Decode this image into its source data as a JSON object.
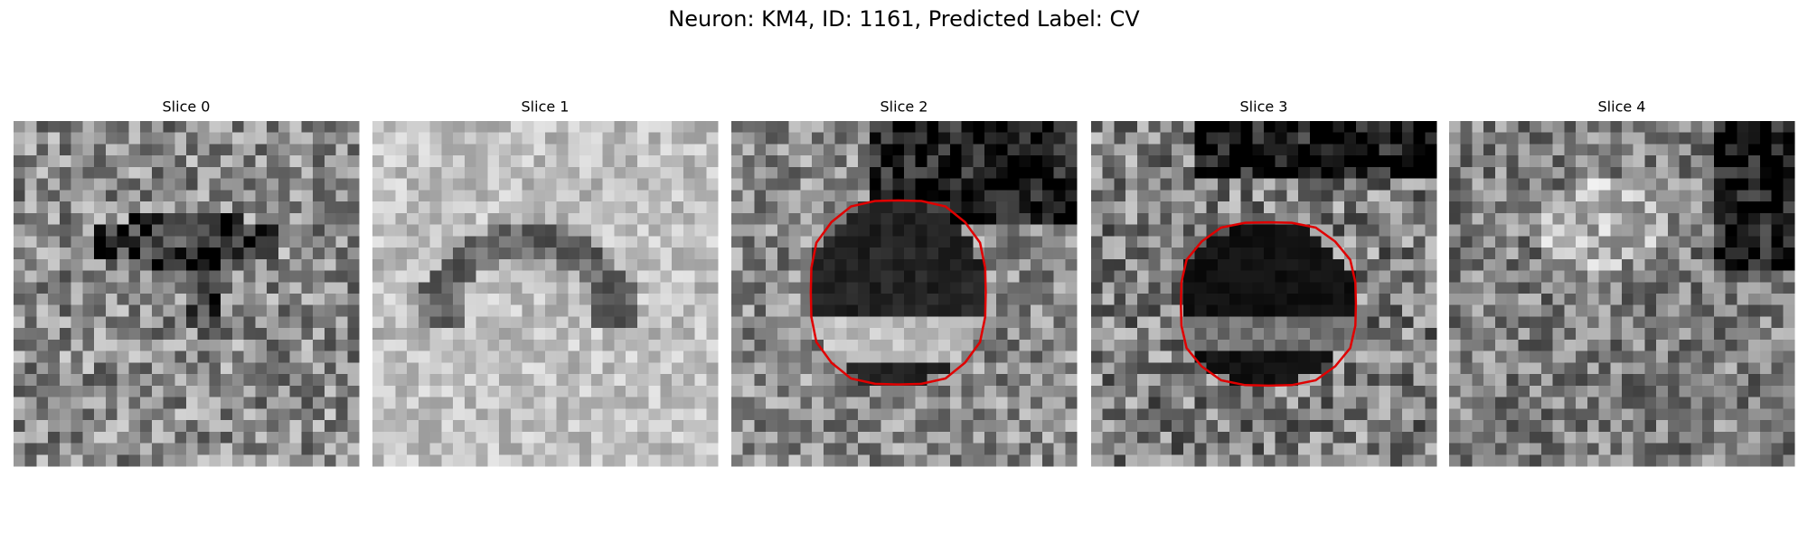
{
  "figure": {
    "title": "Neuron: KM4, ID: 1161, Predicted Label: CV",
    "panels": [
      {
        "title": "Slice 0"
      },
      {
        "title": "Slice 1"
      },
      {
        "title": "Slice 2"
      },
      {
        "title": "Slice 3"
      },
      {
        "title": "Slice 4"
      }
    ]
  }
}
